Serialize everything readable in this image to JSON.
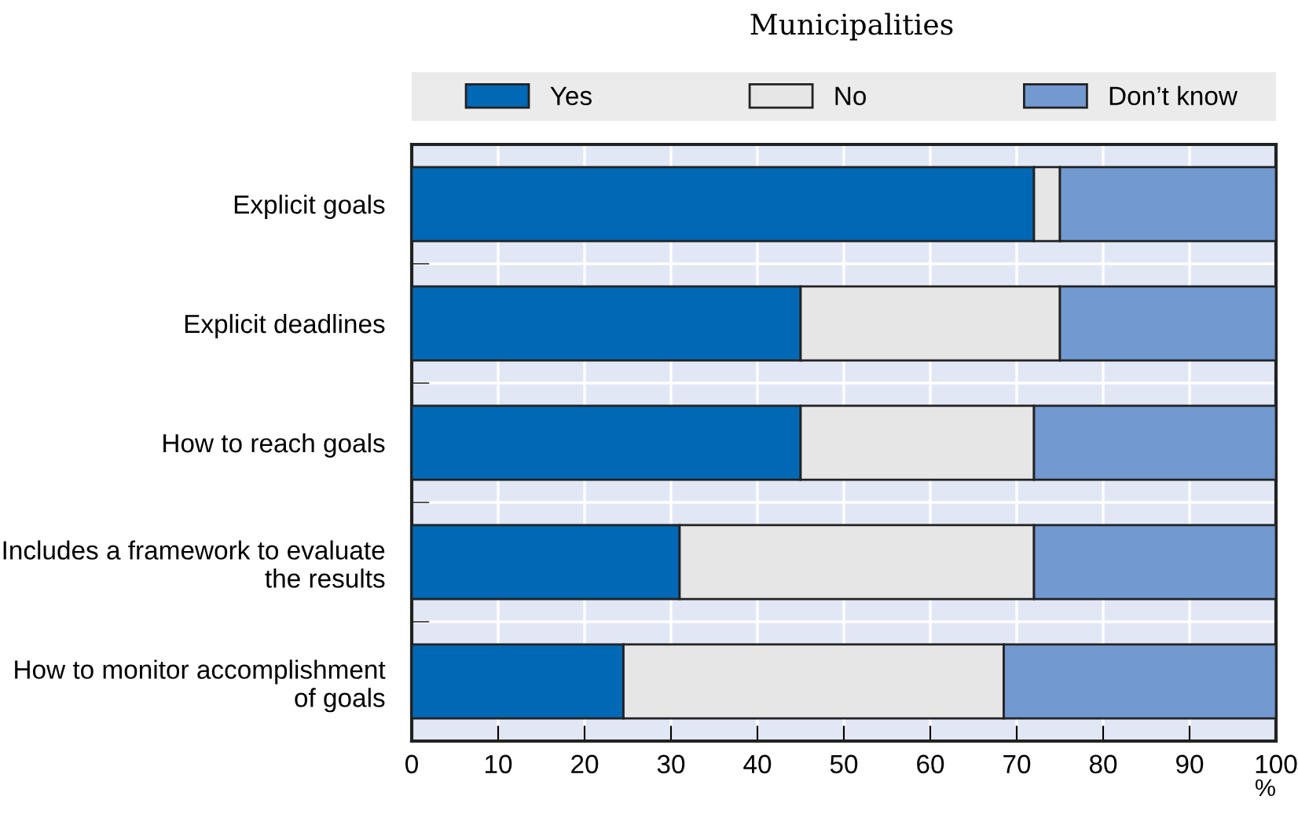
{
  "chart_data": {
    "type": "bar",
    "orientation": "horizontal",
    "stacked": true,
    "title": "Municipalities",
    "xlabel": "%",
    "categories": [
      "Explicit goals",
      "Explicit deadlines",
      "How to reach goals",
      "Includes a framework to evaluate\nthe results",
      "How to monitor accomplishment\nof goals"
    ],
    "series": [
      {
        "name": "Yes",
        "color": "#0068b4",
        "values": [
          72,
          45,
          45,
          31,
          24.5
        ]
      },
      {
        "name": "No",
        "color": "#e6e6e6",
        "values": [
          3,
          30,
          27,
          41,
          44
        ]
      },
      {
        "name": "Don’t know",
        "color": "#7299d0",
        "values": [
          25,
          25,
          28,
          28,
          31.5
        ]
      }
    ],
    "xlim": [
      0,
      100
    ],
    "xticks": [
      0,
      10,
      20,
      30,
      40,
      50,
      60,
      70,
      80,
      90,
      100
    ],
    "grid": true,
    "legend": "top"
  }
}
